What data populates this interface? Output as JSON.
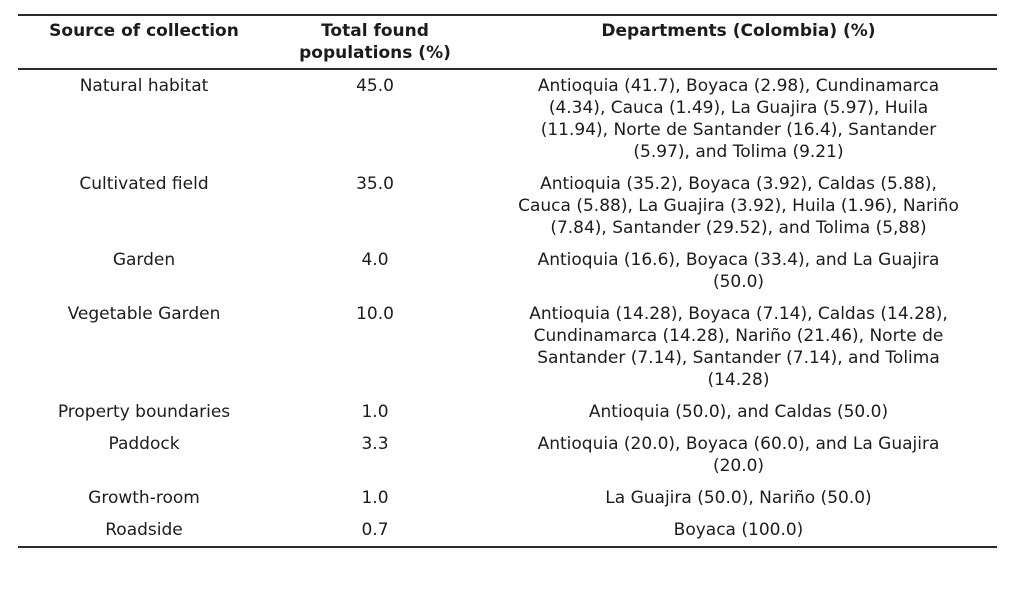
{
  "table": {
    "columns": [
      {
        "label": "Source of collection"
      },
      {
        "label": "Total found populations (%)"
      },
      {
        "label": "Departments (Colombia) (%)"
      }
    ],
    "rows": [
      {
        "source": "Natural habitat",
        "total": "45.0",
        "departments": "Antioquia (41.7), Boyaca (2.98), Cundinamarca (4.34), Cauca (1.49), La Guajira (5.97), Huila (11.94), Norte de Santander (16.4), Santander (5.97), and Tolima (9.21)"
      },
      {
        "source": "Cultivated field",
        "total": "35.0",
        "departments": "Antioquia (35.2), Boyaca (3.92), Caldas (5.88), Cauca (5.88), La Guajira (3.92), Huila (1.96), Nariño (7.84), Santander (29.52), and Tolima (5,88)"
      },
      {
        "source": "Garden",
        "total": "4.0",
        "departments": "Antioquia (16.6), Boyaca (33.4), and La Guajira (50.0)"
      },
      {
        "source": "Vegetable Garden",
        "total": "10.0",
        "departments": "Antioquia (14.28), Boyaca (7.14), Caldas (14.28), Cundinamarca (14.28), Nariño (21.46), Norte de Santander (7.14), Santander (7.14), and Tolima (14.28)"
      },
      {
        "source": "Property boundaries",
        "total": "1.0",
        "departments": "Antioquia (50.0), and Caldas (50.0)"
      },
      {
        "source": "Paddock",
        "total": "3.3",
        "departments": "Antioquia (20.0), Boyaca (60.0), and La Guajira (20.0)"
      },
      {
        "source": "Growth-room",
        "total": "1.0",
        "departments": "La Guajira (50.0), Nariño (50.0)"
      },
      {
        "source": "Roadside",
        "total": "0.7",
        "departments": "Boyaca (100.0)"
      }
    ],
    "colors": {
      "text": "#1c1c1c",
      "rule": "#2b2b2b",
      "background": "#ffffff"
    }
  }
}
